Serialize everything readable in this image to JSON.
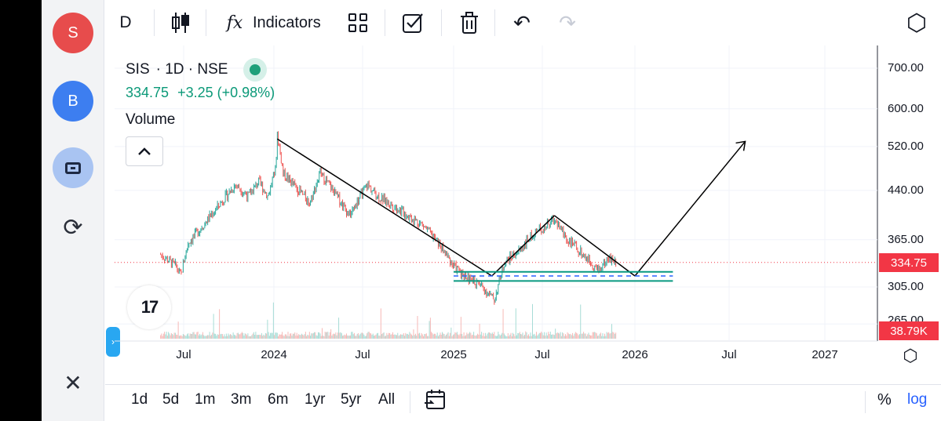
{
  "sidebar": {
    "avatar_s": "S",
    "avatar_b": "B",
    "sync_icon": "⟳",
    "close_icon": "✕",
    "expand_icon": "›"
  },
  "toolbar": {
    "interval": "D",
    "indicators_icon": "fx",
    "indicators_label": "Indicators",
    "undo_icon": "↶",
    "redo_icon": "↷",
    "settings_icon": "⬡"
  },
  "legend": {
    "symbol": "SIS",
    "interval": "· 1D · NSE",
    "price": "334.75",
    "change": "+3.25 (+0.98%)",
    "volume_label": "Volume",
    "collapse_icon": "^",
    "tv_logo": "17"
  },
  "price_axis": {
    "labels": [
      "700.00",
      "600.00",
      "520.00",
      "440.00",
      "365.00",
      "305.00",
      "265.00"
    ],
    "last_price": "334.75",
    "last_volume": "38.79K"
  },
  "time_axis": {
    "labels": [
      "Jul",
      "2024",
      "Jul",
      "2025",
      "Jul",
      "2026",
      "Jul",
      "2027"
    ]
  },
  "bottom_bar": {
    "ranges": [
      "1d",
      "5d",
      "1m",
      "3m",
      "6m",
      "1yr",
      "5yr",
      "All"
    ],
    "percent_label": "%",
    "log_label": "log"
  },
  "colors": {
    "up": "#26a69a",
    "down": "#ef5350",
    "last_price": "#f23645",
    "support": "#089981",
    "dashed": "#2962ff"
  },
  "chart_data": {
    "type": "candlestick",
    "symbol": "SIS",
    "exchange": "NSE",
    "interval": "1D",
    "last_price": 334.75,
    "change": 3.25,
    "change_pct": 0.98,
    "volume_last": "38.79K",
    "y_scale": "log",
    "y_ticks": [
      700,
      600,
      520,
      440,
      365,
      305,
      265
    ],
    "x_ticks": [
      "Jul",
      "2024",
      "Jul",
      "2025",
      "Jul",
      "2026",
      "Jul",
      "2027"
    ],
    "price_path": [
      [
        "2023-05-15",
        345
      ],
      [
        "2023-06-15",
        330
      ],
      [
        "2023-06-25",
        318
      ],
      [
        "2023-07-10",
        360
      ],
      [
        "2023-08-15",
        390
      ],
      [
        "2023-09-15",
        420
      ],
      [
        "2023-10-15",
        450
      ],
      [
        "2023-11-10",
        430
      ],
      [
        "2023-12-01",
        455
      ],
      [
        "2023-12-20",
        430
      ],
      [
        "2024-01-05",
        480
      ],
      [
        "2024-01-08",
        545
      ],
      [
        "2024-01-20",
        470
      ],
      [
        "2024-02-15",
        445
      ],
      [
        "2024-03-15",
        420
      ],
      [
        "2024-04-05",
        470
      ],
      [
        "2024-05-01",
        440
      ],
      [
        "2024-06-05",
        400
      ],
      [
        "2024-07-10",
        450
      ],
      [
        "2024-08-01",
        430
      ],
      [
        "2024-09-01",
        415
      ],
      [
        "2024-10-01",
        400
      ],
      [
        "2024-11-01",
        385
      ],
      [
        "2024-12-01",
        360
      ],
      [
        "2025-01-01",
        330
      ],
      [
        "2025-02-01",
        315
      ],
      [
        "2025-03-01",
        305
      ],
      [
        "2025-03-25",
        290
      ],
      [
        "2025-04-15",
        335
      ],
      [
        "2025-05-15",
        350
      ],
      [
        "2025-06-15",
        375
      ],
      [
        "2025-07-10",
        385
      ],
      [
        "2025-07-25",
        395
      ],
      [
        "2025-08-20",
        365
      ],
      [
        "2025-09-20",
        345
      ],
      [
        "2025-10-20",
        325
      ],
      [
        "2025-11-10",
        340
      ],
      [
        "2025-11-25",
        334.75
      ]
    ],
    "drawings": [
      {
        "type": "trendline",
        "from": [
          "2024-01-08",
          535
        ],
        "to": [
          "2025-03-20",
          318
        ]
      },
      {
        "type": "trendline",
        "from": [
          "2025-03-20",
          318
        ],
        "to": [
          "2025-07-25",
          400
        ]
      },
      {
        "type": "trendline",
        "from": [
          "2025-07-25",
          400
        ],
        "to": [
          "2026-01-01",
          318
        ]
      },
      {
        "type": "trendline",
        "from": [
          "2026-01-01",
          318
        ],
        "to": [
          "2026-08-01",
          530
        ]
      },
      {
        "type": "horizontal_band",
        "price": 323,
        "from": "2025-01-01",
        "to": "2026-03-15"
      },
      {
        "type": "horizontal_band",
        "price": 312,
        "from": "2025-01-01",
        "to": "2026-03-15"
      },
      {
        "type": "dashed_line",
        "price": 318,
        "from": "2025-01-01",
        "to": "2026-03-15"
      }
    ]
  }
}
